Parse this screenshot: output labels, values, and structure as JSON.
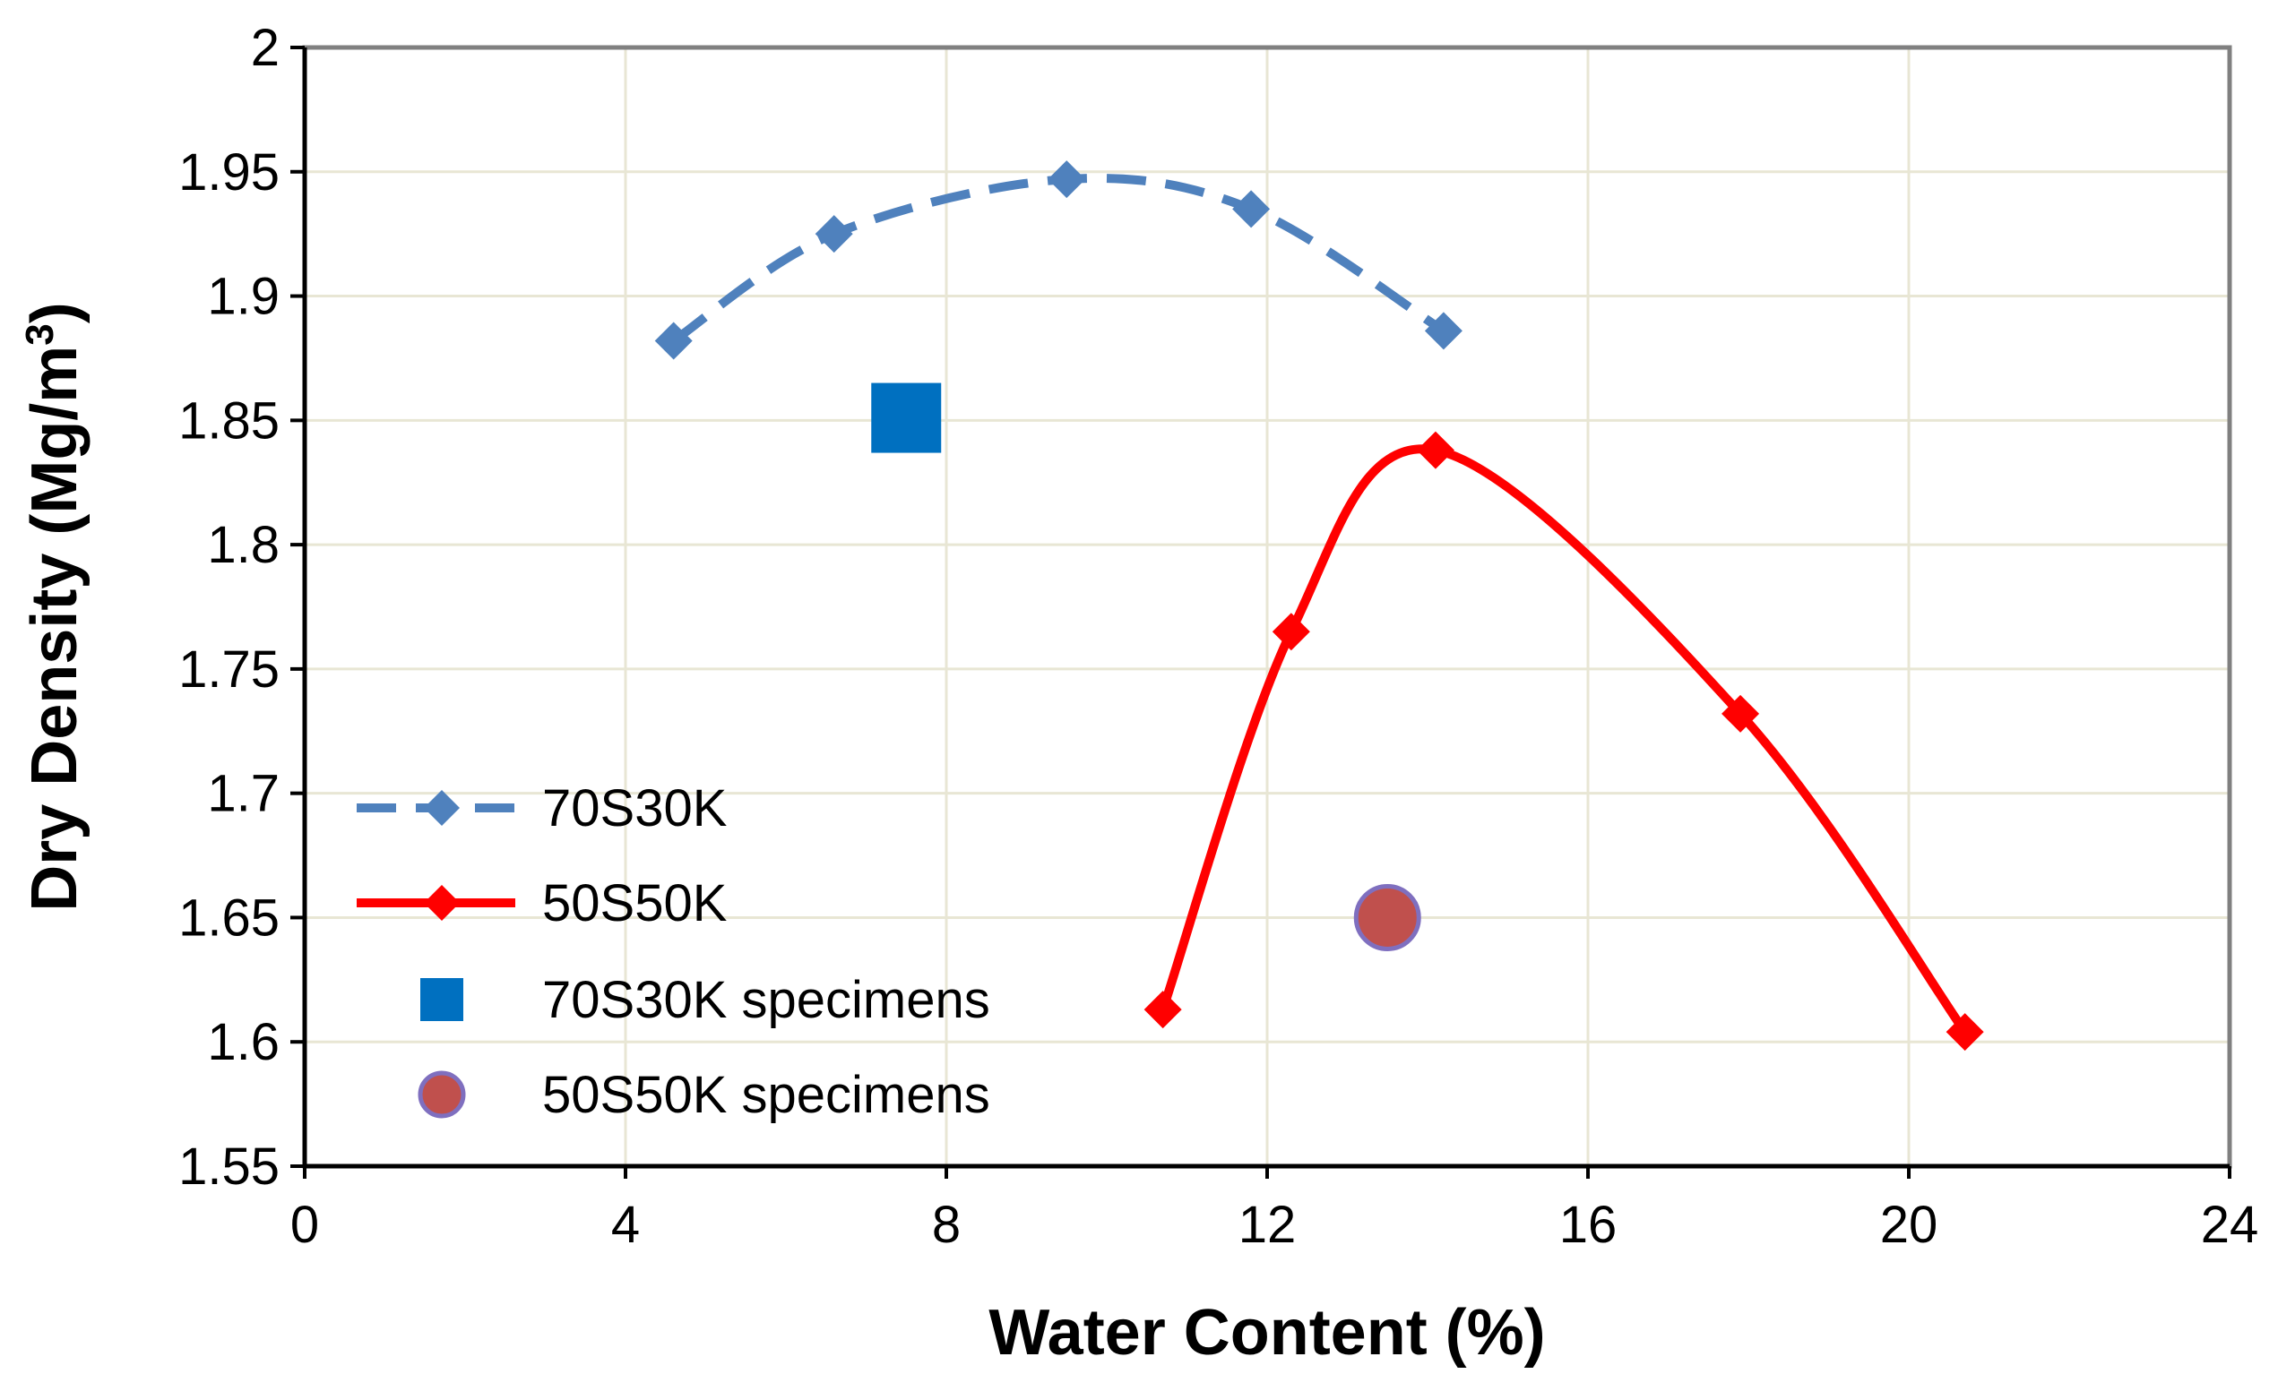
{
  "chart_data": {
    "type": "scatter",
    "xlabel": "Water Content (%)",
    "ylabel_main": "Dry Density (Mg/m",
    "ylabel_sup": "3",
    "ylabel_close": ")",
    "xlim": [
      0,
      24
    ],
    "ylim": [
      1.55,
      2
    ],
    "x_ticks": [
      0,
      4,
      8,
      12,
      16,
      20,
      24
    ],
    "y_ticks": [
      1.55,
      1.6,
      1.65,
      1.7,
      1.75,
      1.8,
      1.85,
      1.9,
      1.95,
      2
    ],
    "x_tick_labels": [
      "0",
      "4",
      "8",
      "12",
      "16",
      "20",
      "24"
    ],
    "y_tick_labels": [
      "1.55",
      "1.6",
      "1.65",
      "1.7",
      "1.75",
      "1.8",
      "1.85",
      "1.9",
      "1.95",
      "2"
    ],
    "grid": true,
    "legend_position": "lower-left",
    "series": [
      {
        "name": "70S30K",
        "style": "dashed-smooth-line-diamond",
        "color": "#4F81BD",
        "x": [
          4.6,
          6.6,
          9.5,
          11.8,
          14.2
        ],
        "y": [
          1.882,
          1.925,
          1.947,
          1.935,
          1.886
        ]
      },
      {
        "name": "50S50K",
        "style": "solid-smooth-line-diamond",
        "color": "#FF0000",
        "x": [
          10.7,
          12.3,
          14.1,
          17.9,
          20.7
        ],
        "y": [
          1.613,
          1.765,
          1.838,
          1.732,
          1.604
        ]
      },
      {
        "name": "70S30K specimens",
        "style": "square-marker",
        "color": "#0070C0",
        "x": [
          7.5
        ],
        "y": [
          1.851
        ]
      },
      {
        "name": "50S50K specimens",
        "style": "circle-marker",
        "color": "#C0504D",
        "edge_color": "#7F6FBF",
        "x": [
          13.5
        ],
        "y": [
          1.65
        ]
      }
    ]
  }
}
